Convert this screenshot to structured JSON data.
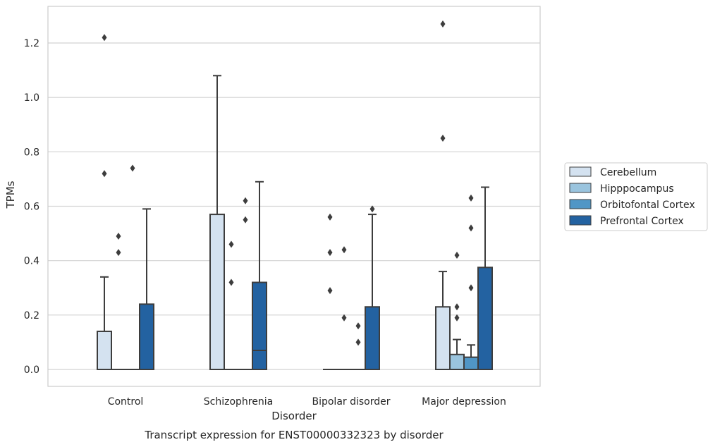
{
  "chart_data": {
    "type": "boxplot",
    "title": "",
    "caption": "Transcript expression for ENST00000332323 by disorder",
    "xlabel": "Disorder",
    "ylabel": "TPMs",
    "ylim": [
      -0.06,
      1.34
    ],
    "yticks": [
      0.0,
      0.2,
      0.4,
      0.6,
      0.8,
      1.0,
      1.2
    ],
    "ytick_labels": [
      "0.0",
      "0.2",
      "0.4",
      "0.6",
      "0.8",
      "1.0",
      "1.2"
    ],
    "grid": "horizontal",
    "legend_position": "right",
    "categories": [
      "Control",
      "Schizophrenia",
      "Bipolar disorder",
      "Major depression"
    ],
    "series": [
      {
        "name": "Cerebellum",
        "color": "#d4e2f0",
        "boxes": [
          {
            "q1": 0.0,
            "median": 0.0,
            "q3": 0.14,
            "whisker_low": 0.0,
            "whisker_high": 0.34,
            "outliers": [
              0.72,
              1.22
            ]
          },
          {
            "q1": 0.0,
            "median": 0.0,
            "q3": 0.57,
            "whisker_low": 0.0,
            "whisker_high": 1.08,
            "outliers": []
          },
          {
            "q1": 0.0,
            "median": 0.0,
            "q3": 0.0,
            "whisker_low": 0.0,
            "whisker_high": 0.0,
            "outliers": [
              0.29,
              0.43,
              0.56
            ]
          },
          {
            "q1": 0.0,
            "median": 0.0,
            "q3": 0.23,
            "whisker_low": 0.0,
            "whisker_high": 0.36,
            "outliers": [
              0.85,
              1.27
            ]
          }
        ]
      },
      {
        "name": "Hipppocampus",
        "color": "#9ac4de",
        "boxes": [
          {
            "q1": 0.0,
            "median": 0.0,
            "q3": 0.0,
            "whisker_low": 0.0,
            "whisker_high": 0.0,
            "outliers": [
              0.43,
              0.49
            ]
          },
          {
            "q1": 0.0,
            "median": 0.0,
            "q3": 0.0,
            "whisker_low": 0.0,
            "whisker_high": 0.0,
            "outliers": [
              0.32,
              0.46
            ]
          },
          {
            "q1": 0.0,
            "median": 0.0,
            "q3": 0.0,
            "whisker_low": 0.0,
            "whisker_high": 0.0,
            "outliers": [
              0.19,
              0.44
            ]
          },
          {
            "q1": 0.0,
            "median": 0.0,
            "q3": 0.055,
            "whisker_low": 0.0,
            "whisker_high": 0.11,
            "outliers": [
              0.19,
              0.23,
              0.42
            ]
          }
        ]
      },
      {
        "name": "Orbitofontal Cortex",
        "color": "#5096c6",
        "boxes": [
          {
            "q1": 0.0,
            "median": 0.0,
            "q3": 0.0,
            "whisker_low": 0.0,
            "whisker_high": 0.0,
            "outliers": [
              0.74
            ]
          },
          {
            "q1": 0.0,
            "median": 0.0,
            "q3": 0.0,
            "whisker_low": 0.0,
            "whisker_high": 0.0,
            "outliers": [
              0.55,
              0.62
            ]
          },
          {
            "q1": 0.0,
            "median": 0.0,
            "q3": 0.0,
            "whisker_low": 0.0,
            "whisker_high": 0.0,
            "outliers": [
              0.1,
              0.16
            ]
          },
          {
            "q1": 0.0,
            "median": 0.0,
            "q3": 0.045,
            "whisker_low": 0.0,
            "whisker_high": 0.09,
            "outliers": [
              0.3,
              0.52,
              0.63
            ]
          }
        ]
      },
      {
        "name": "Prefrontal Cortex",
        "color": "#2362a1",
        "boxes": [
          {
            "q1": 0.0,
            "median": 0.0,
            "q3": 0.24,
            "whisker_low": 0.0,
            "whisker_high": 0.59,
            "outliers": []
          },
          {
            "q1": 0.0,
            "median": 0.07,
            "q3": 0.32,
            "whisker_low": 0.0,
            "whisker_high": 0.69,
            "outliers": []
          },
          {
            "q1": 0.0,
            "median": 0.0,
            "q3": 0.23,
            "whisker_low": 0.0,
            "whisker_high": 0.57,
            "outliers": [
              0.59
            ]
          },
          {
            "q1": 0.0,
            "median": 0.0,
            "q3": 0.375,
            "whisker_low": 0.0,
            "whisker_high": 0.67,
            "outliers": []
          }
        ]
      }
    ]
  }
}
